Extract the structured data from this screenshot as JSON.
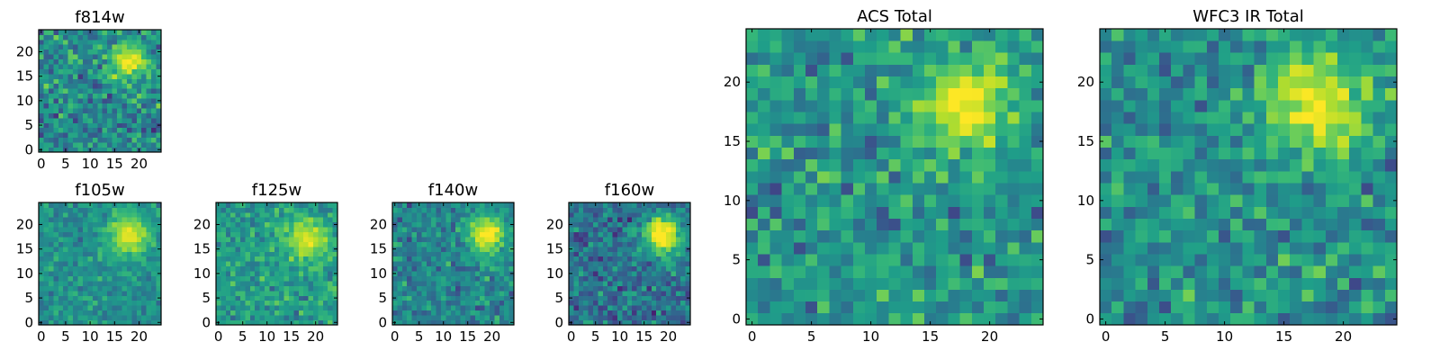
{
  "figure_title": "",
  "chart_data": [
    {
      "id": "f814w",
      "type": "heatmap",
      "title": "f814w",
      "nx": 25,
      "ny": 25,
      "xlim": [
        -0.5,
        24.5
      ],
      "ylim": [
        -0.5,
        24.5
      ],
      "xticks": [
        0,
        5,
        10,
        15,
        20
      ],
      "yticks": [
        0,
        5,
        10,
        15,
        20
      ],
      "colormap": "viridis",
      "source": {
        "x": 18,
        "y": 18,
        "sigma": 2.6,
        "peak": 0.93
      },
      "background": 0.48,
      "noise": 0.16,
      "seed": 11
    },
    {
      "id": "f105w",
      "type": "heatmap",
      "title": "f105w",
      "nx": 25,
      "ny": 25,
      "xlim": [
        -0.5,
        24.5
      ],
      "ylim": [
        -0.5,
        24.5
      ],
      "xticks": [
        0,
        5,
        10,
        15,
        20
      ],
      "yticks": [
        0,
        5,
        10,
        15,
        20
      ],
      "colormap": "viridis",
      "source": {
        "x": 18,
        "y": 18,
        "sigma": 3.0,
        "peak": 0.92
      },
      "background": 0.5,
      "noise": 0.1,
      "seed": 23
    },
    {
      "id": "f125w",
      "type": "heatmap",
      "title": "f125w",
      "nx": 25,
      "ny": 25,
      "xlim": [
        -0.5,
        24.5
      ],
      "ylim": [
        -0.5,
        24.5
      ],
      "xticks": [
        0,
        5,
        10,
        15,
        20
      ],
      "yticks": [
        0,
        5,
        10,
        15,
        20
      ],
      "colormap": "viridis",
      "source": {
        "x": 18,
        "y": 17,
        "sigma": 3.0,
        "peak": 0.9
      },
      "background": 0.55,
      "noise": 0.12,
      "seed": 37
    },
    {
      "id": "f140w",
      "type": "heatmap",
      "title": "f140w",
      "nx": 25,
      "ny": 25,
      "xlim": [
        -0.5,
        24.5
      ],
      "ylim": [
        -0.5,
        24.5
      ],
      "xticks": [
        0,
        5,
        10,
        15,
        20
      ],
      "yticks": [
        0,
        5,
        10,
        15,
        20
      ],
      "colormap": "viridis",
      "source": {
        "x": 19,
        "y": 18,
        "sigma": 2.8,
        "peak": 0.95
      },
      "background": 0.45,
      "noise": 0.13,
      "seed": 41
    },
    {
      "id": "f160w",
      "type": "heatmap",
      "title": "f160w",
      "nx": 25,
      "ny": 25,
      "xlim": [
        -0.5,
        24.5
      ],
      "ylim": [
        -0.5,
        24.5
      ],
      "xticks": [
        0,
        5,
        10,
        15,
        20
      ],
      "yticks": [
        0,
        5,
        10,
        15,
        20
      ],
      "colormap": "viridis",
      "source": {
        "x": 19,
        "y": 18,
        "sigma": 2.8,
        "peak": 0.98
      },
      "background": 0.38,
      "noise": 0.14,
      "seed": 53
    },
    {
      "id": "acs",
      "type": "heatmap",
      "title": "ACS Total",
      "nx": 25,
      "ny": 25,
      "xlim": [
        -0.5,
        24.5
      ],
      "ylim": [
        -0.5,
        24.5
      ],
      "xticks": [
        0,
        5,
        10,
        15,
        20
      ],
      "yticks": [
        0,
        5,
        10,
        15,
        20
      ],
      "colormap": "viridis",
      "source": {
        "x": 18,
        "y": 18,
        "sigma": 2.6,
        "peak": 0.96
      },
      "background": 0.52,
      "noise": 0.15,
      "seed": 67
    },
    {
      "id": "wfc3",
      "type": "heatmap",
      "title": "WFC3 IR Total",
      "nx": 25,
      "ny": 25,
      "xlim": [
        -0.5,
        24.5
      ],
      "ylim": [
        -0.5,
        24.5
      ],
      "xticks": [
        0,
        5,
        10,
        15,
        20
      ],
      "yticks": [
        0,
        5,
        10,
        15,
        20
      ],
      "colormap": "viridis",
      "source": {
        "x": 18,
        "y": 18,
        "sigma": 3.0,
        "peak": 0.93
      },
      "background": 0.5,
      "noise": 0.15,
      "seed": 79
    }
  ],
  "colors": {
    "viridis": [
      "#440154",
      "#482878",
      "#3e4989",
      "#31688e",
      "#26828e",
      "#1f9e89",
      "#35b779",
      "#6ece58",
      "#b5de2b",
      "#fde725"
    ],
    "axis": "#000000",
    "background": "#ffffff"
  }
}
